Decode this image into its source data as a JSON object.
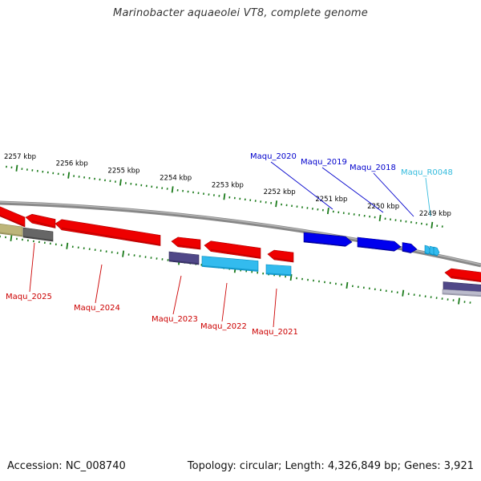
{
  "title": "Marinobacter aquaeolei VT8, complete genome",
  "footer": {
    "accession": "Accession: NC_008740",
    "summary": "Topology: circular; Length: 4,326,849 bp; Genes: 3,921"
  },
  "colors": {
    "forward_gene": "#0000ee",
    "reverse_gene": "#ee0000",
    "rna_gene": "#33bbee",
    "label_forward": "#0000cc",
    "label_reverse": "#cc0000",
    "label_rna": "#33bbdd",
    "tick": "#1a7a1a",
    "backbone": "#888888"
  },
  "ticks": [
    {
      "kbp": 2257,
      "label": "2257 kbp"
    },
    {
      "kbp": 2256,
      "label": "2256 kbp"
    },
    {
      "kbp": 2255,
      "label": "2255 kbp"
    },
    {
      "kbp": 2254,
      "label": "2254 kbp"
    },
    {
      "kbp": 2253,
      "label": "2253 kbp"
    },
    {
      "kbp": 2252,
      "label": "2252 kbp"
    },
    {
      "kbp": 2251,
      "label": "2251 kbp"
    },
    {
      "kbp": 2250,
      "label": "2250 kbp"
    },
    {
      "kbp": 2249,
      "label": "2249 kbp"
    }
  ],
  "genes": [
    {
      "label": "Maqu_2025",
      "strand": "reverse"
    },
    {
      "label": "Maqu_2024",
      "strand": "reverse"
    },
    {
      "label": "Maqu_2023",
      "strand": "reverse"
    },
    {
      "label": "Maqu_2022",
      "strand": "reverse"
    },
    {
      "label": "Maqu_2021",
      "strand": "reverse"
    },
    {
      "label": "Maqu_2020",
      "strand": "forward"
    },
    {
      "label": "Maqu_2019",
      "strand": "forward"
    },
    {
      "label": "Maqu_2018",
      "strand": "forward"
    },
    {
      "label": "Maqu_R0048",
      "strand": "forward"
    }
  ]
}
